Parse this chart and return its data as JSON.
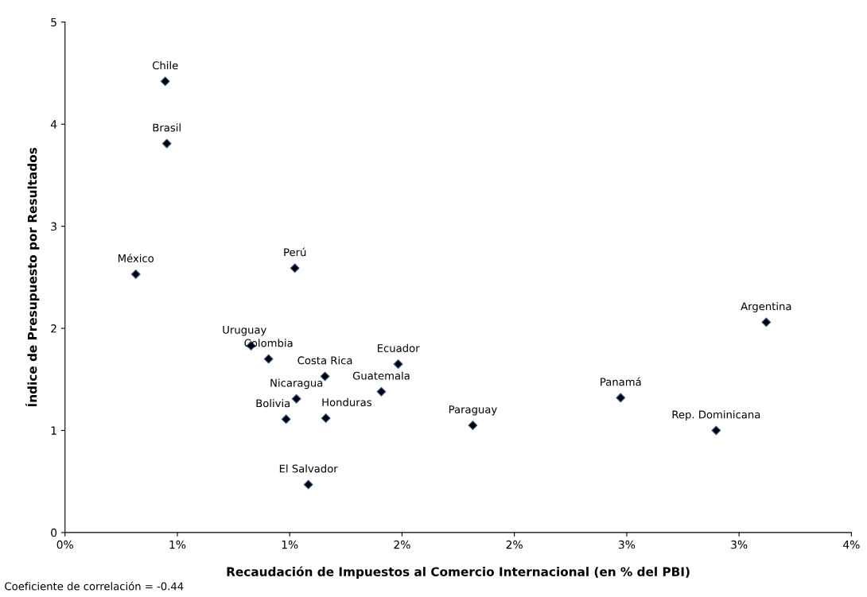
{
  "chart_data": {
    "type": "scatter",
    "xlabel": "Recaudación de Impuestos al Comercio Internacional (en % del PBI)",
    "ylabel": "Índice de Presupuesto por Resultados",
    "x": [
      0.446,
      0.453,
      0.315,
      1.023,
      0.828,
      0.906,
      1.157,
      1.03,
      0.984,
      1.161,
      1.083,
      1.483,
      1.408,
      1.815,
      2.473,
      2.898,
      3.121
    ],
    "series": [
      {
        "color": "#000000",
        "values": [
          4.42,
          3.81,
          2.53,
          2.59,
          1.83,
          1.7,
          1.53,
          1.31,
          1.11,
          1.12,
          0.47,
          1.65,
          1.38,
          1.05,
          1.32,
          1.0,
          2.06
        ]
      }
    ],
    "marker": "diamond",
    "xlim": [
      0,
      3.5
    ],
    "xticks": [
      {
        "value": 0,
        "label": "0%"
      },
      {
        "value": 0.5,
        "label": "1%"
      },
      {
        "value": 1.0,
        "label": "1%"
      },
      {
        "value": 1.5,
        "label": "2%"
      },
      {
        "value": 2.0,
        "label": "2%"
      },
      {
        "value": 2.5,
        "label": "3%"
      },
      {
        "value": 3.0,
        "label": "3%"
      },
      {
        "value": 3.5,
        "label": "4%"
      }
    ],
    "ylim": [
      0,
      5
    ],
    "yticks": [
      0,
      1,
      2,
      3,
      4,
      5
    ],
    "grid": false,
    "annotations": [
      {
        "text": "Chile",
        "x": 0.446,
        "y": 4.42
      },
      {
        "text": "Brasil",
        "x": 0.453,
        "y": 3.81
      },
      {
        "text": "México",
        "x": 0.315,
        "y": 2.53
      },
      {
        "text": "Perú",
        "x": 1.023,
        "y": 2.59
      },
      {
        "text": "Uruguay",
        "x": 0.828,
        "y": 1.83
      },
      {
        "text": "Colombia",
        "x": 0.906,
        "y": 1.7
      },
      {
        "text": "Costa Rica",
        "x": 1.157,
        "y": 1.53
      },
      {
        "text": "Nicaragua",
        "x": 1.03,
        "y": 1.31
      },
      {
        "text": "Bolivia",
        "x": 0.984,
        "y": 1.11
      },
      {
        "text": "Honduras",
        "x": 1.161,
        "y": 1.12
      },
      {
        "text": "El Salvador",
        "x": 1.083,
        "y": 0.47
      },
      {
        "text": "Ecuador",
        "x": 1.483,
        "y": 1.65
      },
      {
        "text": "Guatemala",
        "x": 1.408,
        "y": 1.38
      },
      {
        "text": "Paraguay",
        "x": 1.815,
        "y": 1.05
      },
      {
        "text": "Panamá",
        "x": 2.473,
        "y": 1.32
      },
      {
        "text": "Rep. Dominicana",
        "x": 2.898,
        "y": 1.0
      },
      {
        "text": "Argentina",
        "x": 3.121,
        "y": 2.06
      },
      "Coeficiente de correlación = -0.44"
    ]
  }
}
